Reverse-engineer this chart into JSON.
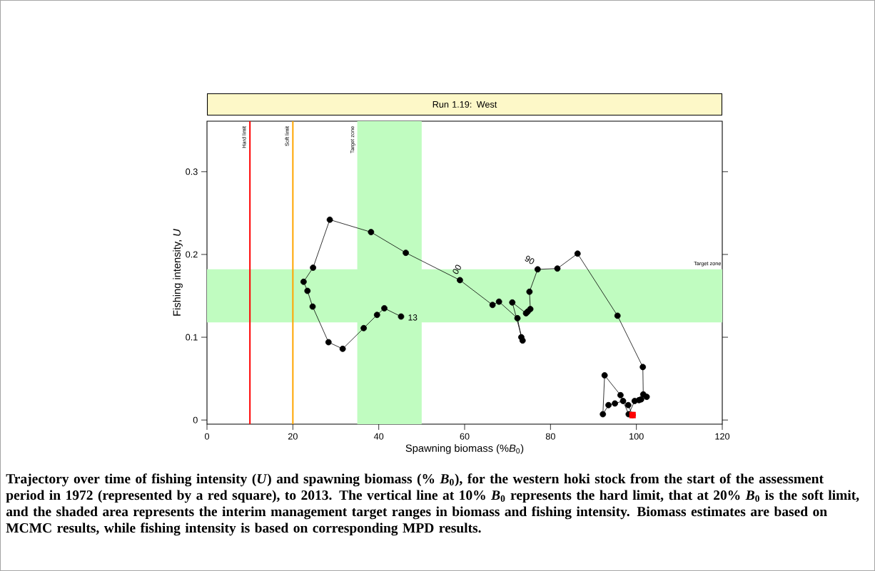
{
  "chart_data": {
    "type": "line",
    "title": "Run 1.19: West",
    "xlabel": "Spawning biomass (%*B*$_{0}$)",
    "ylabel": "Fishing intensity, *U*",
    "xlim": [
      0,
      120
    ],
    "xticks": [
      0,
      20,
      40,
      60,
      80,
      100,
      120
    ],
    "ylim": [
      -0.005,
      0.361
    ],
    "yticks": [
      0,
      0.1,
      0.2,
      0.3
    ],
    "marker": "circle",
    "line_style": "solid",
    "series": [
      {
        "color": "#000000",
        "x": [
          99.1,
          98.1,
          96.9,
          95.0,
          93.5,
          92.2,
          92.6,
          96.3,
          98.2,
          99.6,
          100.6,
          101.1,
          102.4,
          101.6,
          101.5,
          95.6,
          86.3,
          81.6,
          77.0,
          75.1,
          75.3,
          74.7,
          74.3,
          71.1,
          73.5,
          73.2,
          72.3,
          68.0,
          66.5,
          58.9,
          46.3,
          38.2,
          28.6,
          24.7,
          22.5,
          23.4,
          24.6,
          28.3,
          31.6,
          36.5,
          39.6,
          41.3,
          45.2
        ],
        "values": [
          0.006,
          0.018,
          0.023,
          0.02,
          0.018,
          0.007,
          0.054,
          0.03,
          0.007,
          0.023,
          0.024,
          0.025,
          0.028,
          0.031,
          0.064,
          0.126,
          0.201,
          0.183,
          0.182,
          0.155,
          0.134,
          0.131,
          0.129,
          0.142,
          0.096,
          0.1,
          0.123,
          0.143,
          0.139,
          0.169,
          0.202,
          0.227,
          0.242,
          0.184,
          0.167,
          0.156,
          0.137,
          0.094,
          0.086,
          0.111,
          0.127,
          0.135,
          0.125
        ]
      },
      {
        "type": "scatter",
        "marker": "square",
        "color": "#ff0000",
        "x": [
          99.1
        ],
        "values": [
          0.006
        ]
      }
    ],
    "ref_lines": [
      {
        "axis": "x",
        "value": 10,
        "label": "Hard limit",
        "color": "#ff0000"
      },
      {
        "axis": "x",
        "value": 20,
        "label": "Soft limit",
        "color": "#ffa500"
      }
    ],
    "bands": [
      {
        "axis": "x",
        "from": 35,
        "to": 50,
        "label": "Target zone",
        "color": "#c0fcc0"
      },
      {
        "axis": "y",
        "from": 0.118,
        "to": 0.182,
        "label": "Target zone",
        "color": "#c0fcc0"
      }
    ],
    "annotations": [
      {
        "text": "90",
        "x": 77.0,
        "y": 0.182
      },
      {
        "text": "00",
        "x": 58.9,
        "y": 0.169
      },
      {
        "text": "13",
        "x": 45.2,
        "y": 0.125
      },
      "Trajectory over time of fishing intensity (*U*) and spawning biomass (% *B*$_{0}$), for the western hoki stock from the start of the assessment period in 1972 (represented by a red square), to 2013.  The vertical line at 10% *B*$_{0}$ represents the hard limit, that at 20% *B*$_{0}$ is the soft limit, and the shaded area represents the interim management target ranges in biomass and fishing intensity.  Biomass estimates are based on MCMC results, while fishing intensity is based on corresponding MPD results."
    ],
    "grid": false
  }
}
